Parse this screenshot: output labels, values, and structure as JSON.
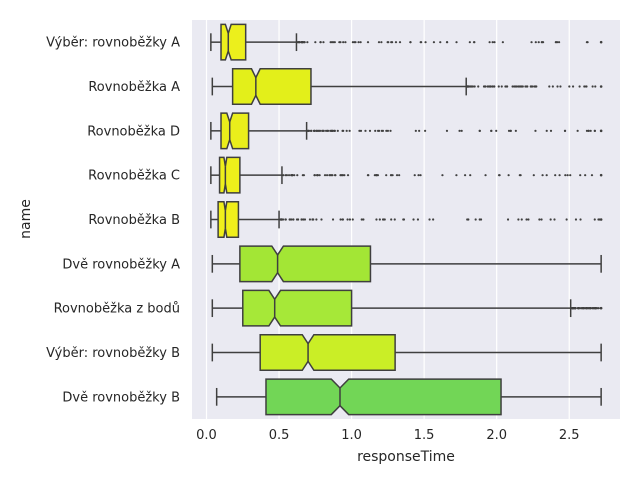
{
  "chart_data": {
    "type": "box",
    "orientation": "horizontal",
    "notched": true,
    "xlabel": "responseTime",
    "ylabel": "name",
    "xlim": [
      -0.1,
      2.85
    ],
    "xticks": [
      0.0,
      0.5,
      1.0,
      1.5,
      2.0,
      2.5
    ],
    "xtick_labels": [
      "0.0",
      "0.5",
      "1.0",
      "1.5",
      "2.0",
      "2.5"
    ],
    "grid": true,
    "background": "#eaeaf2",
    "grid_color": "#ffffff",
    "line_color": "#3f3f3f",
    "categories": [
      "Výběr: rovnoběžky A",
      "Rovnoběžka A",
      "Rovnoběžka D",
      "Rovnoběžka C",
      "Rovnoběžka B",
      "Dvě rovnoběžky A",
      "Rovnoběžka z bodů",
      "Výběr: rovnoběžky B",
      "Dvě rovnoběžky B"
    ],
    "boxes": [
      {
        "name": "Výběr: rovnoběžky A",
        "whislo": 0.03,
        "q1": 0.1,
        "med": 0.15,
        "q3": 0.27,
        "whishi": 0.62,
        "notch_lo": 0.13,
        "notch_hi": 0.17,
        "color": "#ecef1c",
        "outlier_range": [
          0.63,
          2.72
        ]
      },
      {
        "name": "Rovnoběžka A",
        "whislo": 0.04,
        "q1": 0.18,
        "med": 0.34,
        "q3": 0.72,
        "whishi": 1.79,
        "notch_lo": 0.31,
        "notch_hi": 0.37,
        "color": "#e3ef1a",
        "outlier_range": [
          1.8,
          2.72
        ]
      },
      {
        "name": "Rovnoběžka D",
        "whislo": 0.03,
        "q1": 0.1,
        "med": 0.16,
        "q3": 0.29,
        "whishi": 0.69,
        "notch_lo": 0.14,
        "notch_hi": 0.18,
        "color": "#eaee1b",
        "outlier_range": [
          0.7,
          2.72
        ]
      },
      {
        "name": "Rovnoběžka C",
        "whislo": 0.03,
        "q1": 0.09,
        "med": 0.13,
        "q3": 0.23,
        "whishi": 0.52,
        "notch_lo": 0.12,
        "notch_hi": 0.14,
        "color": "#eeef1b",
        "outlier_range": [
          0.53,
          2.72
        ]
      },
      {
        "name": "Rovnoběžka B",
        "whislo": 0.03,
        "q1": 0.08,
        "med": 0.13,
        "q3": 0.22,
        "whishi": 0.5,
        "notch_lo": 0.12,
        "notch_hi": 0.14,
        "color": "#f0ef1b",
        "outlier_range": [
          0.51,
          2.72
        ]
      },
      {
        "name": "Dvě rovnoběžky A",
        "whislo": 0.04,
        "q1": 0.23,
        "med": 0.49,
        "q3": 1.13,
        "whishi": 2.72,
        "notch_lo": 0.45,
        "notch_hi": 0.53,
        "color": "#a3e635",
        "outlier_range": null
      },
      {
        "name": "Rovnoběžka z bodů",
        "whislo": 0.04,
        "q1": 0.25,
        "med": 0.47,
        "q3": 1.0,
        "whishi": 2.51,
        "notch_lo": 0.43,
        "notch_hi": 0.51,
        "color": "#a6e838",
        "outlier_range": [
          2.52,
          2.72
        ]
      },
      {
        "name": "Výběr: rovnoběžky B",
        "whislo": 0.04,
        "q1": 0.37,
        "med": 0.7,
        "q3": 1.3,
        "whishi": 2.72,
        "notch_lo": 0.66,
        "notch_hi": 0.74,
        "color": "#caee26",
        "outlier_range": null
      },
      {
        "name": "Dvě rovnoběžky B",
        "whislo": 0.07,
        "q1": 0.41,
        "med": 0.92,
        "q3": 2.03,
        "whishi": 2.72,
        "notch_lo": 0.86,
        "notch_hi": 0.98,
        "color": "#72d656",
        "outlier_range": null
      }
    ]
  }
}
